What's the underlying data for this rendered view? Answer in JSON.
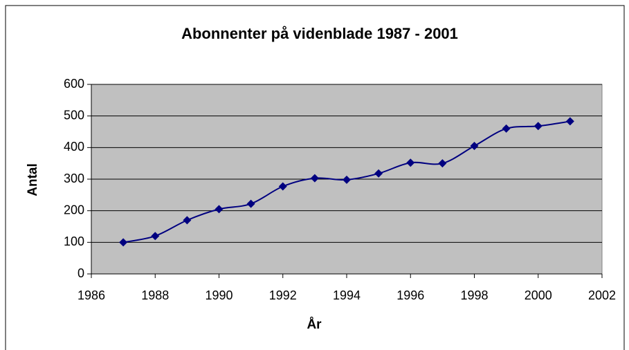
{
  "chart_data": {
    "type": "line",
    "title": "Abonnenter på videnblade 1987 - 2001",
    "x_label": "År",
    "y_label": "Antal",
    "x": [
      1987,
      1988,
      1989,
      1990,
      1991,
      1992,
      1993,
      1994,
      1995,
      1996,
      1997,
      1998,
      1999,
      2000,
      2001
    ],
    "values": [
      100,
      120,
      170,
      205,
      222,
      277,
      303,
      298,
      318,
      352,
      350,
      405,
      460,
      468,
      483
    ],
    "color": "#000080",
    "smooth": true,
    "xlim": [
      1986,
      2002
    ],
    "xticks": [
      1986,
      1988,
      1990,
      1992,
      1994,
      1996,
      1998,
      2000,
      2002
    ],
    "ylim": [
      0,
      600
    ],
    "yticks": [
      0,
      100,
      200,
      300,
      400,
      500,
      600
    ],
    "grid": true
  }
}
